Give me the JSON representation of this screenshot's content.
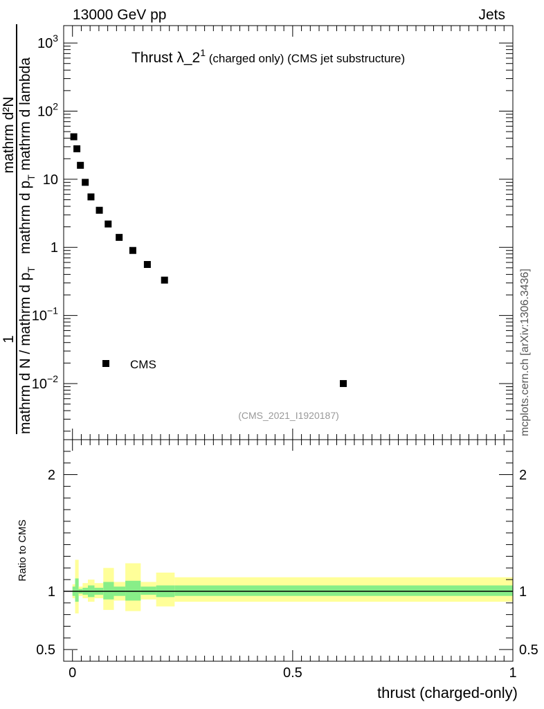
{
  "header": {
    "left": "13000 GeV pp",
    "right": "Jets"
  },
  "side_label": "mcplots.cern.ch [arXiv:1306.3436]",
  "chart_data": [
    {
      "type": "scatter",
      "title_main": "Thrust λ_2",
      "title_sup": "1",
      "title_rest": " (charged only) (CMS jet substructure)",
      "watermark": "(CMS_2021_I1920187)",
      "ylabel": {
        "numerator": "mathrm d²N",
        "denominator_1": "mathrm d p",
        "denominator_sub_1": "T",
        "denominator_2": " mathrm d lambda",
        "prefix_num": "1",
        "prefix_den_1": "mathrm d N / mathrm d p",
        "prefix_den_sub": "T"
      },
      "yscale": "log",
      "ylim": [
        0.0015,
        1800
      ],
      "xlim": [
        -0.02,
        1.0
      ],
      "yticks": [
        {
          "value": 1000,
          "base": "10",
          "exp": "3"
        },
        {
          "value": 100,
          "base": "10",
          "exp": "2"
        },
        {
          "value": 10,
          "base": "10",
          "exp": ""
        },
        {
          "value": 1,
          "base": "1",
          "exp": ""
        },
        {
          "value": 0.1,
          "base": "10",
          "exp": "−1"
        },
        {
          "value": 0.01,
          "base": "10",
          "exp": "−2"
        }
      ],
      "legend": {
        "label": "CMS",
        "placement": "lower-left"
      },
      "series": [
        {
          "name": "CMS",
          "color": "#000000",
          "marker": "square",
          "x": [
            0.003,
            0.01,
            0.018,
            0.029,
            0.042,
            0.061,
            0.081,
            0.106,
            0.137,
            0.17,
            0.209,
            0.615
          ],
          "y": [
            42,
            28,
            16,
            9,
            5.5,
            3.5,
            2.2,
            1.4,
            0.9,
            0.56,
            0.33,
            0.01
          ]
        }
      ]
    },
    {
      "type": "area",
      "ylabel": "Ratio to CMS",
      "xlabel": "thrust (charged-only)",
      "ylim": [
        0.4,
        2.3
      ],
      "xlim": [
        -0.02,
        1.0
      ],
      "yticks": [
        "0.5",
        "1",
        "2"
      ],
      "xticks": [
        "0",
        "0.5",
        "1"
      ],
      "reference_line": 1,
      "colors": {
        "stat": "#88ee88",
        "total": "#ffff99"
      },
      "bands": [
        {
          "x0": 0.0,
          "x1": 0.006,
          "stat": [
            0.96,
            1.04
          ],
          "total": [
            0.94,
            1.06
          ]
        },
        {
          "x0": 0.006,
          "x1": 0.014,
          "stat": [
            0.91,
            1.11
          ],
          "total": [
            0.81,
            1.27
          ]
        },
        {
          "x0": 0.014,
          "x1": 0.023,
          "stat": [
            0.98,
            1.02
          ],
          "total": [
            0.96,
            1.04
          ]
        },
        {
          "x0": 0.023,
          "x1": 0.035,
          "stat": [
            0.97,
            1.03
          ],
          "total": [
            0.94,
            1.07
          ]
        },
        {
          "x0": 0.035,
          "x1": 0.05,
          "stat": [
            0.95,
            1.05
          ],
          "total": [
            0.91,
            1.1
          ]
        },
        {
          "x0": 0.05,
          "x1": 0.07,
          "stat": [
            0.97,
            1.03
          ],
          "total": [
            0.94,
            1.07
          ]
        },
        {
          "x0": 0.07,
          "x1": 0.094,
          "stat": [
            0.93,
            1.08
          ],
          "total": [
            0.84,
            1.2
          ]
        },
        {
          "x0": 0.094,
          "x1": 0.12,
          "stat": [
            0.96,
            1.04
          ],
          "total": [
            0.92,
            1.08
          ]
        },
        {
          "x0": 0.12,
          "x1": 0.155,
          "stat": [
            0.92,
            1.09
          ],
          "total": [
            0.83,
            1.24
          ]
        },
        {
          "x0": 0.155,
          "x1": 0.19,
          "stat": [
            0.97,
            1.04
          ],
          "total": [
            0.93,
            1.08
          ]
        },
        {
          "x0": 0.19,
          "x1": 0.232,
          "stat": [
            0.95,
            1.05
          ],
          "total": [
            0.87,
            1.16
          ]
        },
        {
          "x0": 0.232,
          "x1": 1.0,
          "stat": [
            0.96,
            1.05
          ],
          "total": [
            0.91,
            1.12
          ]
        }
      ]
    }
  ]
}
